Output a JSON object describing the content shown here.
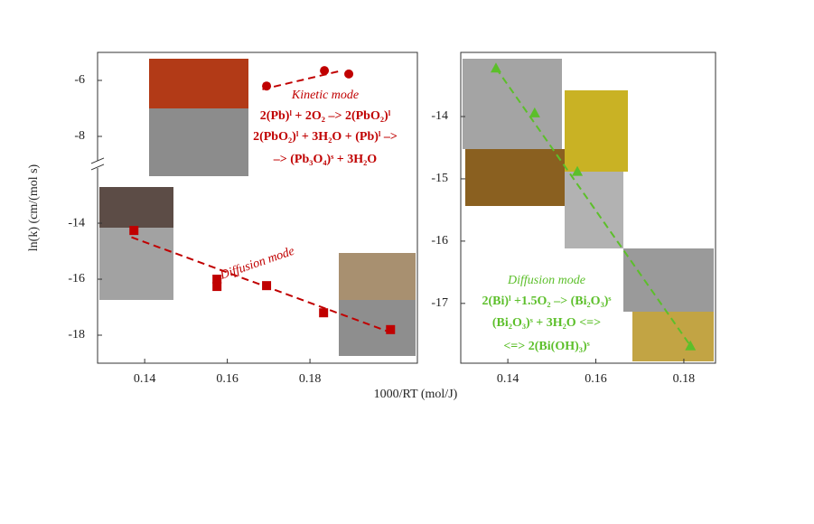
{
  "chart_data": [
    {
      "type": "scatter",
      "ylabel": "ln(k) (cm/(mol s)",
      "xlabel": "1000/RT (mol/J)",
      "xlim": [
        0.1286,
        0.206
      ],
      "xticks": [
        0.14,
        0.16,
        0.18
      ],
      "ylim": [
        -19,
        -5
      ],
      "ybreak": [
        -11.9,
        -9
      ],
      "yticks": [
        -6,
        -8,
        -14,
        -16,
        -18
      ],
      "series": [
        {
          "color": "#c00000",
          "marker": "circle",
          "x": [
            0.1695,
            0.1835,
            0.1894
          ],
          "values": [
            -6.2,
            -5.65,
            -5.77
          ],
          "fit": {
            "x": [
              0.1685,
              0.1877
            ],
            "values": [
              -6.32,
              -5.65
            ]
          }
        },
        {
          "color": "#c00000",
          "marker": "square",
          "x": [
            0.1374,
            0.1575,
            0.1575,
            0.1695,
            0.1833,
            0.1995
          ],
          "values": [
            -14.26,
            -16.0,
            -16.26,
            -16.23,
            -17.2,
            -17.8
          ],
          "fit": {
            "x": [
              0.1368,
              0.1995
            ],
            "values": [
              -14.5,
              -17.9
            ]
          }
        }
      ],
      "annotations": [
        "Kinetic mode",
        "2(Pb)ˡ + 2O₂ –> 2(PbO₂)ˡ",
        "2(PbO₂)ˡ + 3H₂O + (Pb)ˡ –>",
        "–> (Pb₃O₄)ˢ + 3H₂O",
        "Diffusion mode"
      ]
    },
    {
      "type": "scatter",
      "xlim": [
        0.1293,
        0.1872
      ],
      "xticks": [
        0.14,
        0.16,
        0.18
      ],
      "ylim": [
        -17.96,
        -12.97
      ],
      "yticks": [
        -14,
        -15,
        -16,
        -17
      ],
      "series": [
        {
          "color": "#5cbf2a",
          "marker": "triangle",
          "x": [
            0.1373,
            0.1461,
            0.1558,
            0.1815
          ],
          "values": [
            -13.22,
            -13.94,
            -14.88,
            -17.68
          ],
          "fit": {
            "x": [
              0.1373,
              0.1815
            ],
            "values": [
              -13.22,
              -17.68
            ]
          }
        }
      ],
      "annotations": [
        "Diffusion mode",
        "2(Bi)ˡ +1.5O₂ –> (Bi₂O₃)ˢ",
        "(Bi₂O₃)ˢ + 3H₂O <=>",
        "<=> 2(Bi(OH)₃)ˢ"
      ]
    }
  ]
}
